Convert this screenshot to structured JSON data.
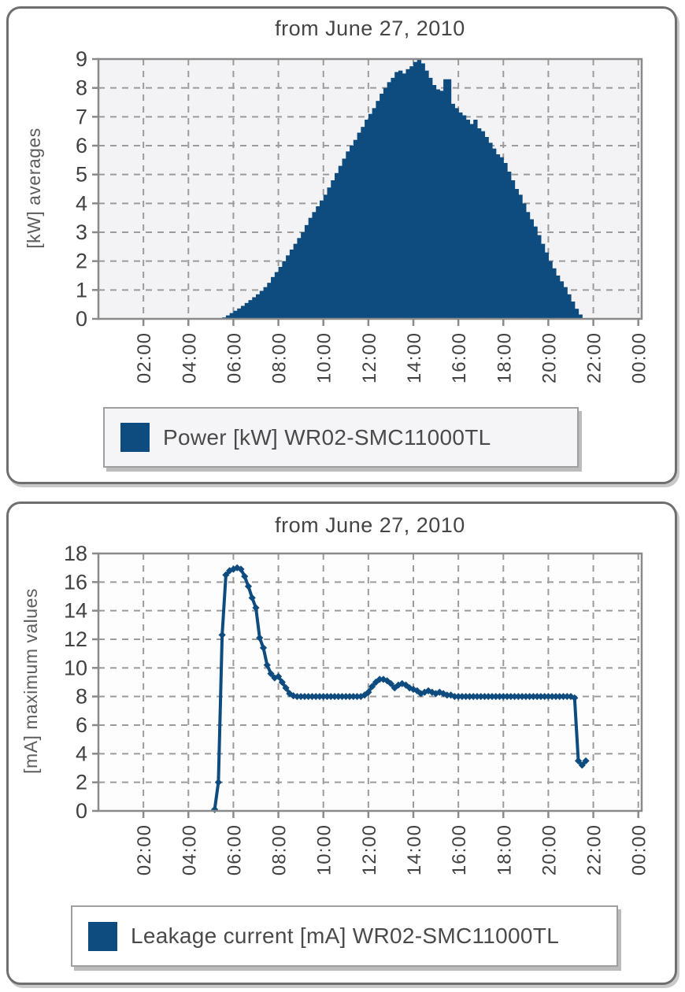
{
  "page": {
    "background": "#ffffff"
  },
  "colors": {
    "series_blue": "#0e4c80",
    "grid": "#9b9b9b",
    "plot_border": "#8a8a8a",
    "card_border": "#6f6f6f",
    "legend_border": "#9f9f9f",
    "plot_bg_power": "#f3f3f5",
    "plot_bg_leakage": "#fdfdfe",
    "legend_bg_power": "#f5f5f7",
    "legend_bg_leakage": "#ffffff",
    "tick_text": "#414141",
    "axis_label_text": "#5d5d5d",
    "title_text": "#454545"
  },
  "chart_data": [
    {
      "id": "power",
      "type": "bar",
      "title": "from June 27, 2010",
      "ylabel": "[kW] averages",
      "legend": "Power [kW] WR02-SMC11000TL",
      "ylim": [
        0,
        9
      ],
      "yticks": [
        0,
        1,
        2,
        3,
        4,
        5,
        6,
        7,
        8,
        9
      ],
      "xlim_hours": [
        0,
        24.15
      ],
      "xtick_hours": [
        2,
        4,
        6,
        8,
        10,
        12,
        14,
        16,
        18,
        20,
        22,
        24
      ],
      "xtick_labels": [
        "02:00",
        "04:00",
        "06:00",
        "08:00",
        "10:00",
        "12:00",
        "14:00",
        "16:00",
        "18:00",
        "20:00",
        "22:00",
        "00:00"
      ],
      "grid": true,
      "x_start_hour": 5.5,
      "x_step_minutes": 10,
      "values": [
        0.05,
        0.12,
        0.2,
        0.28,
        0.36,
        0.45,
        0.55,
        0.65,
        0.75,
        0.85,
        0.97,
        1.1,
        1.25,
        1.45,
        1.62,
        1.8,
        2,
        2.2,
        2.4,
        2.6,
        2.8,
        3,
        3.25,
        3.5,
        3.7,
        3.9,
        4.1,
        4.3,
        4.55,
        4.8,
        5.05,
        5.3,
        5.55,
        5.8,
        6,
        6.2,
        6.45,
        6.65,
        6.9,
        7.1,
        7.3,
        7.55,
        7.8,
        8,
        8.2,
        8.35,
        8.55,
        8.6,
        8.5,
        8.65,
        8.75,
        8.9,
        9,
        8.85,
        8.6,
        8.35,
        8.1,
        7.95,
        7.9,
        8.3,
        8.3,
        7.45,
        7.3,
        7.15,
        7.05,
        6.9,
        6.75,
        6.9,
        6.6,
        6.5,
        6.3,
        6.1,
        5.9,
        5.7,
        5.6,
        5.4,
        5.1,
        4.8,
        4.5,
        4.3,
        4,
        3.7,
        3.45,
        3.2,
        2.9,
        2.6,
        2.3,
        2,
        1.75,
        1.5,
        1.3,
        1.1,
        0.85,
        0.6,
        0.35,
        0.15
      ]
    },
    {
      "id": "leakage",
      "type": "line",
      "title": "from June 27, 2010",
      "ylabel": "[mA] maximum values",
      "legend": "Leakage current [mA] WR02-SMC11000TL",
      "ylim": [
        0,
        18
      ],
      "yticks": [
        0,
        2,
        4,
        6,
        8,
        10,
        12,
        14,
        16,
        18
      ],
      "xlim_hours": [
        0,
        24.15
      ],
      "xtick_hours": [
        2,
        4,
        6,
        8,
        10,
        12,
        14,
        16,
        18,
        20,
        22,
        24
      ],
      "xtick_labels": [
        "02:00",
        "04:00",
        "06:00",
        "08:00",
        "10:00",
        "12:00",
        "14:00",
        "16:00",
        "18:00",
        "20:00",
        "22:00",
        "00:00"
      ],
      "grid": true,
      "x_start_hour": 5.1667,
      "x_step_minutes": 10,
      "values": [
        0.1,
        2,
        12.3,
        16.5,
        16.8,
        16.9,
        17,
        16.9,
        16.4,
        15.7,
        14.9,
        14.2,
        12.1,
        11.4,
        10.2,
        9.6,
        9.3,
        9.4,
        9,
        8.6,
        8.2,
        8.05,
        8,
        8,
        8,
        8,
        8,
        8,
        8,
        8,
        8,
        8,
        8,
        8,
        8,
        8,
        8,
        8,
        8,
        8,
        8.1,
        8.3,
        8.7,
        9,
        9.2,
        9.2,
        9.1,
        8.9,
        8.6,
        8.8,
        8.9,
        8.8,
        8.6,
        8.5,
        8.4,
        8.2,
        8.3,
        8.4,
        8.3,
        8.2,
        8.3,
        8.2,
        8.1,
        8.1,
        8,
        8,
        8,
        8,
        8,
        8,
        8,
        8,
        8,
        8,
        8,
        8,
        8,
        8,
        8,
        8,
        8,
        8,
        8,
        8,
        8,
        8,
        8,
        8,
        8,
        8,
        8,
        8,
        8,
        8,
        8,
        8,
        7.9,
        3.5,
        3.2,
        3.5
      ]
    }
  ]
}
